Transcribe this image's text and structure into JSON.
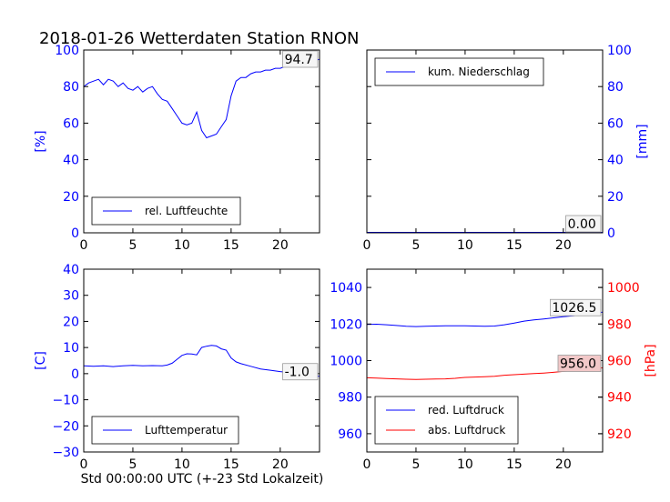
{
  "title": "2018-01-26 Wetterdaten Station RNON",
  "xlabel": "Std 00:00:00 UTC (+-23 Std Lokalzeit)",
  "colors": {
    "primary": "#0000ff",
    "secondary": "#ff0000",
    "box_last_secondary": "#f2c8c8"
  },
  "chart_data": [
    {
      "id": "humidity",
      "type": "line",
      "xlim": [
        0,
        24
      ],
      "ylim": [
        0,
        100
      ],
      "xticks": [
        0,
        5,
        10,
        15,
        20
      ],
      "yticks": [
        0,
        20,
        40,
        60,
        80,
        100
      ],
      "ylabel": "[%]",
      "ylabel_side": "left",
      "tick_color": "#0000ff",
      "legend": {
        "label": "rel. Luftfeuchte",
        "placement": "lower-left"
      },
      "last_value": "94.7",
      "series": [
        {
          "name": "rel. Luftfeuchte",
          "color": "#0000ff",
          "axis": "left",
          "x": [
            0,
            0.5,
            1,
            1.5,
            2,
            2.5,
            3,
            3.5,
            4,
            4.5,
            5,
            5.5,
            6,
            6.5,
            7,
            7.5,
            8,
            8.5,
            9,
            9.5,
            10,
            10.5,
            11,
            11.5,
            12,
            12.5,
            13,
            13.5,
            14,
            14.5,
            15,
            15.5,
            16,
            16.5,
            17,
            17.5,
            18,
            18.5,
            19,
            19.5,
            20,
            20.5,
            21,
            21.5,
            22,
            22.5,
            23,
            23.5,
            24
          ],
          "y": [
            80,
            82,
            83,
            84,
            81,
            84,
            83,
            80,
            82,
            79,
            78,
            80,
            77,
            79,
            80,
            76,
            73,
            72,
            68,
            64,
            60,
            59,
            60,
            66,
            56,
            52,
            53,
            54,
            58,
            62,
            75,
            83,
            85,
            85,
            87,
            88,
            88,
            89,
            89,
            90,
            90,
            91,
            91,
            92,
            92,
            93,
            94,
            94,
            95
          ]
        }
      ]
    },
    {
      "id": "precipitation",
      "type": "line",
      "xlim": [
        0,
        24
      ],
      "ylim": [
        0,
        100
      ],
      "xticks": [
        0,
        5,
        10,
        15,
        20
      ],
      "yticks": [
        0,
        20,
        40,
        60,
        80,
        100
      ],
      "ylabel": "[mm]",
      "ylabel_side": "right",
      "tick_color": "#0000ff",
      "legend": {
        "label": "kum. Niederschlag",
        "placement": "upper-left"
      },
      "last_value": "0.00",
      "series": [
        {
          "name": "kum. Niederschlag",
          "color": "#0000ff",
          "axis": "right",
          "x": [
            0,
            24
          ],
          "y": [
            0,
            0
          ]
        }
      ]
    },
    {
      "id": "temperature",
      "type": "line",
      "xlim": [
        0,
        24
      ],
      "ylim": [
        -30,
        40
      ],
      "xticks": [
        0,
        5,
        10,
        15,
        20
      ],
      "yticks": [
        -30,
        -20,
        -10,
        0,
        10,
        20,
        30,
        40
      ],
      "ylabel": "[C]",
      "ylabel_side": "left",
      "tick_color": "#0000ff",
      "legend": {
        "label": "Lufttemperatur",
        "placement": "lower-left"
      },
      "last_value": "-1.0",
      "series": [
        {
          "name": "Lufttemperatur",
          "color": "#0000ff",
          "axis": "left",
          "x": [
            0,
            1,
            2,
            3,
            4,
            5,
            6,
            7,
            8,
            8.5,
            9,
            9.5,
            10,
            10.5,
            11,
            11.5,
            12,
            12.5,
            13,
            13.5,
            14,
            14.5,
            15,
            15.5,
            16,
            17,
            18,
            19,
            20,
            21,
            22,
            23,
            24
          ],
          "y": [
            3,
            2.8,
            3,
            2.7,
            3,
            3.2,
            3,
            3.1,
            3,
            3.3,
            4,
            5.5,
            7,
            7.6,
            7.5,
            7.2,
            10,
            10.5,
            10.8,
            10.6,
            9.5,
            9,
            6,
            4.5,
            3.8,
            2.8,
            1.8,
            1.3,
            0.8,
            0.4,
            -0.3,
            -0.8,
            -1
          ]
        }
      ]
    },
    {
      "id": "pressure",
      "type": "line",
      "xlim": [
        0,
        24
      ],
      "ylim": [
        950,
        1050
      ],
      "xticks": [
        0,
        5,
        10,
        15,
        20
      ],
      "yticks": [
        960,
        980,
        1000,
        1020,
        1040
      ],
      "y2lim": [
        910,
        1010
      ],
      "y2ticks": [
        920,
        940,
        960,
        980,
        1000
      ],
      "y2label": "[hPa]",
      "tick_color": "#0000ff",
      "tick2_color": "#ff0000",
      "legend": {
        "labels": [
          "red. Luftdruck",
          "abs. Luftdruck"
        ],
        "placement": "lower-left"
      },
      "last_value": "1026.5",
      "last_value_secondary": "956.0",
      "series": [
        {
          "name": "red. Luftdruck",
          "color": "#0000ff",
          "axis": "left",
          "x": [
            0,
            1,
            2,
            3,
            4,
            5,
            6,
            7,
            8,
            9,
            10,
            11,
            12,
            13,
            14,
            15,
            16,
            17,
            18,
            19,
            20,
            21,
            22,
            23,
            24
          ],
          "y": [
            1019.8,
            1019.9,
            1019.6,
            1019.2,
            1018.8,
            1018.6,
            1018.8,
            1018.9,
            1019.0,
            1019.0,
            1019.0,
            1018.9,
            1018.8,
            1018.9,
            1019.6,
            1020.5,
            1021.6,
            1022.3,
            1022.8,
            1023.4,
            1024.0,
            1024.5,
            1025.1,
            1025.8,
            1026.5
          ]
        },
        {
          "name": "abs. Luftdruck",
          "color": "#ff0000",
          "axis": "right",
          "x": [
            0,
            1,
            2,
            3,
            4,
            5,
            6,
            7,
            8,
            9,
            10,
            11,
            12,
            13,
            14,
            15,
            16,
            17,
            18,
            19,
            20,
            21,
            22,
            23,
            24
          ],
          "y": [
            950.6,
            950.4,
            950.2,
            950.0,
            949.8,
            949.7,
            949.8,
            949.9,
            950.0,
            950.3,
            950.8,
            951.0,
            951.2,
            951.4,
            952.0,
            952.3,
            952.6,
            952.9,
            953.2,
            953.6,
            954.1,
            954.6,
            955.1,
            955.6,
            956.0
          ]
        }
      ]
    }
  ]
}
